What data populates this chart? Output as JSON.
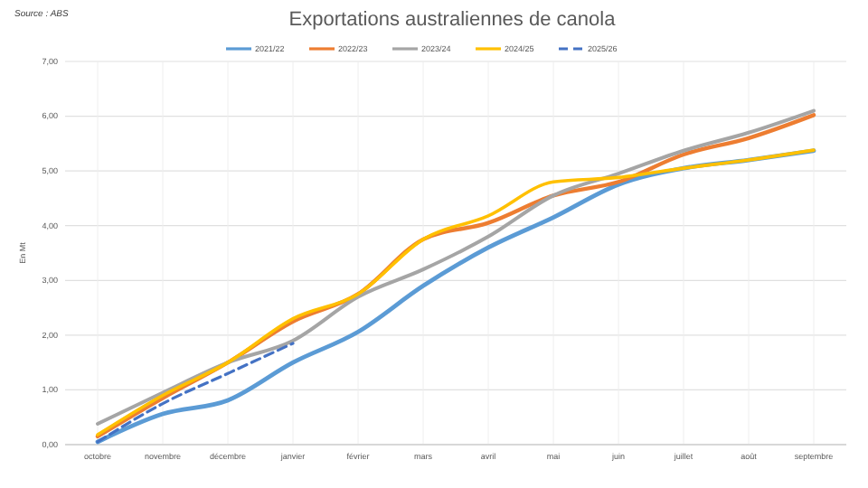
{
  "chart_data": {
    "type": "line",
    "title": "Exportations australiennes de canola",
    "ylabel": "En Mt",
    "annotations": [
      "Source : ABS"
    ],
    "categories": [
      "octobre",
      "novembre",
      "décembre",
      "janvier",
      "février",
      "mars",
      "avril",
      "mai",
      "juin",
      "juillet",
      "août",
      "septembre"
    ],
    "series": [
      {
        "name": "2021/22",
        "color": "#5b9bd5",
        "values": [
          0.05,
          0.56,
          0.81,
          1.5,
          2.06,
          2.9,
          3.6,
          4.15,
          4.75,
          5.05,
          5.2,
          5.37
        ]
      },
      {
        "name": "2022/23",
        "color": "#ed7d31",
        "values": [
          0.15,
          0.85,
          1.5,
          2.25,
          2.75,
          3.75,
          4.05,
          4.55,
          4.8,
          5.3,
          5.6,
          6.02
        ]
      },
      {
        "name": "2023/24",
        "color": "#a5a5a5",
        "values": [
          0.38,
          0.95,
          1.5,
          1.9,
          2.7,
          3.2,
          3.8,
          4.55,
          4.95,
          5.37,
          5.7,
          6.1
        ]
      },
      {
        "name": "2024/25",
        "color": "#ffc000",
        "values": [
          0.18,
          0.9,
          1.5,
          2.3,
          2.75,
          3.75,
          4.18,
          4.8,
          4.88,
          5.05,
          5.2,
          5.38
        ]
      },
      {
        "name": "2025/26",
        "color": "#4472c4",
        "line_style": "dashed",
        "values": [
          0.05,
          0.75,
          1.3,
          1.85,
          null,
          null,
          null,
          null,
          null,
          null,
          null,
          null
        ]
      }
    ],
    "ylim": [
      0,
      7
    ],
    "yticks": [
      {
        "value": 0,
        "label": "0,00"
      },
      {
        "value": 1,
        "label": "1,00"
      },
      {
        "value": 2,
        "label": "2,00"
      },
      {
        "value": 3,
        "label": "3,00"
      },
      {
        "value": 4,
        "label": "4,00"
      },
      {
        "value": 5,
        "label": "5,00"
      },
      {
        "value": 6,
        "label": "6,00"
      },
      {
        "value": 7,
        "label": "7,00"
      }
    ],
    "grid": true,
    "legend": "top",
    "line_style": "solid",
    "marker": "none"
  }
}
